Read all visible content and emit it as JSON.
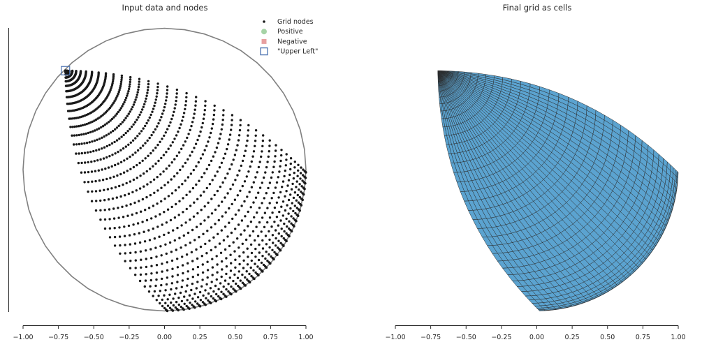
{
  "chart_data": [
    {
      "type": "scatter",
      "title": "Input data and nodes",
      "xlabel": "",
      "ylabel": "",
      "xlim": [
        -1.0,
        1.0
      ],
      "ylim": [
        -1.0,
        1.0
      ],
      "x_ticks": [
        "−1.00",
        "−0.75",
        "−0.50",
        "−0.25",
        "0.00",
        "0.25",
        "0.50",
        "0.75",
        "1.00"
      ],
      "x_tick_values": [
        -1.0,
        -0.75,
        -0.5,
        -0.25,
        0.0,
        0.25,
        0.5,
        0.75,
        1.0
      ],
      "grid": false,
      "legend_position": "top-right",
      "legend": [
        {
          "label": "Grid nodes",
          "marker": "dot",
          "color": "#1a1a1a"
        },
        {
          "label": "Positive",
          "marker": "circle",
          "color": "#a6d3a6"
        },
        {
          "label": "Negative",
          "marker": "square",
          "color": "#e8a0a0"
        },
        {
          "label": "\"Upper Left\"",
          "marker": "open-square",
          "color": "#4c72b0"
        }
      ],
      "boundary": {
        "shape": "circle",
        "center": [
          0.0,
          0.0
        ],
        "radius": 1.0,
        "color": "#808080"
      },
      "convergence_points": [
        [
          -0.7,
          0.7
        ],
        [
          1.0,
          0.0
        ],
        [
          0.0,
          -1.0
        ]
      ],
      "upper_left": [
        -0.7,
        0.7
      ],
      "grid_shape": {
        "rows": 40,
        "cols": 40
      }
    },
    {
      "type": "mesh",
      "title": "Final grid as cells",
      "xlabel": "",
      "ylabel": "",
      "xlim": [
        -1.0,
        1.0
      ],
      "ylim": [
        -1.0,
        1.0
      ],
      "x_ticks": [
        "−1.00",
        "−0.75",
        "−0.50",
        "−0.25",
        "0.00",
        "0.25",
        "0.50",
        "0.75",
        "1.00"
      ],
      "x_tick_values": [
        -1.0,
        -0.75,
        -0.5,
        -0.25,
        0.0,
        0.25,
        0.5,
        0.75,
        1.0
      ],
      "grid": false,
      "cell_color": "#5ba3d0",
      "edge_color": "#2a2a2a"
    }
  ]
}
